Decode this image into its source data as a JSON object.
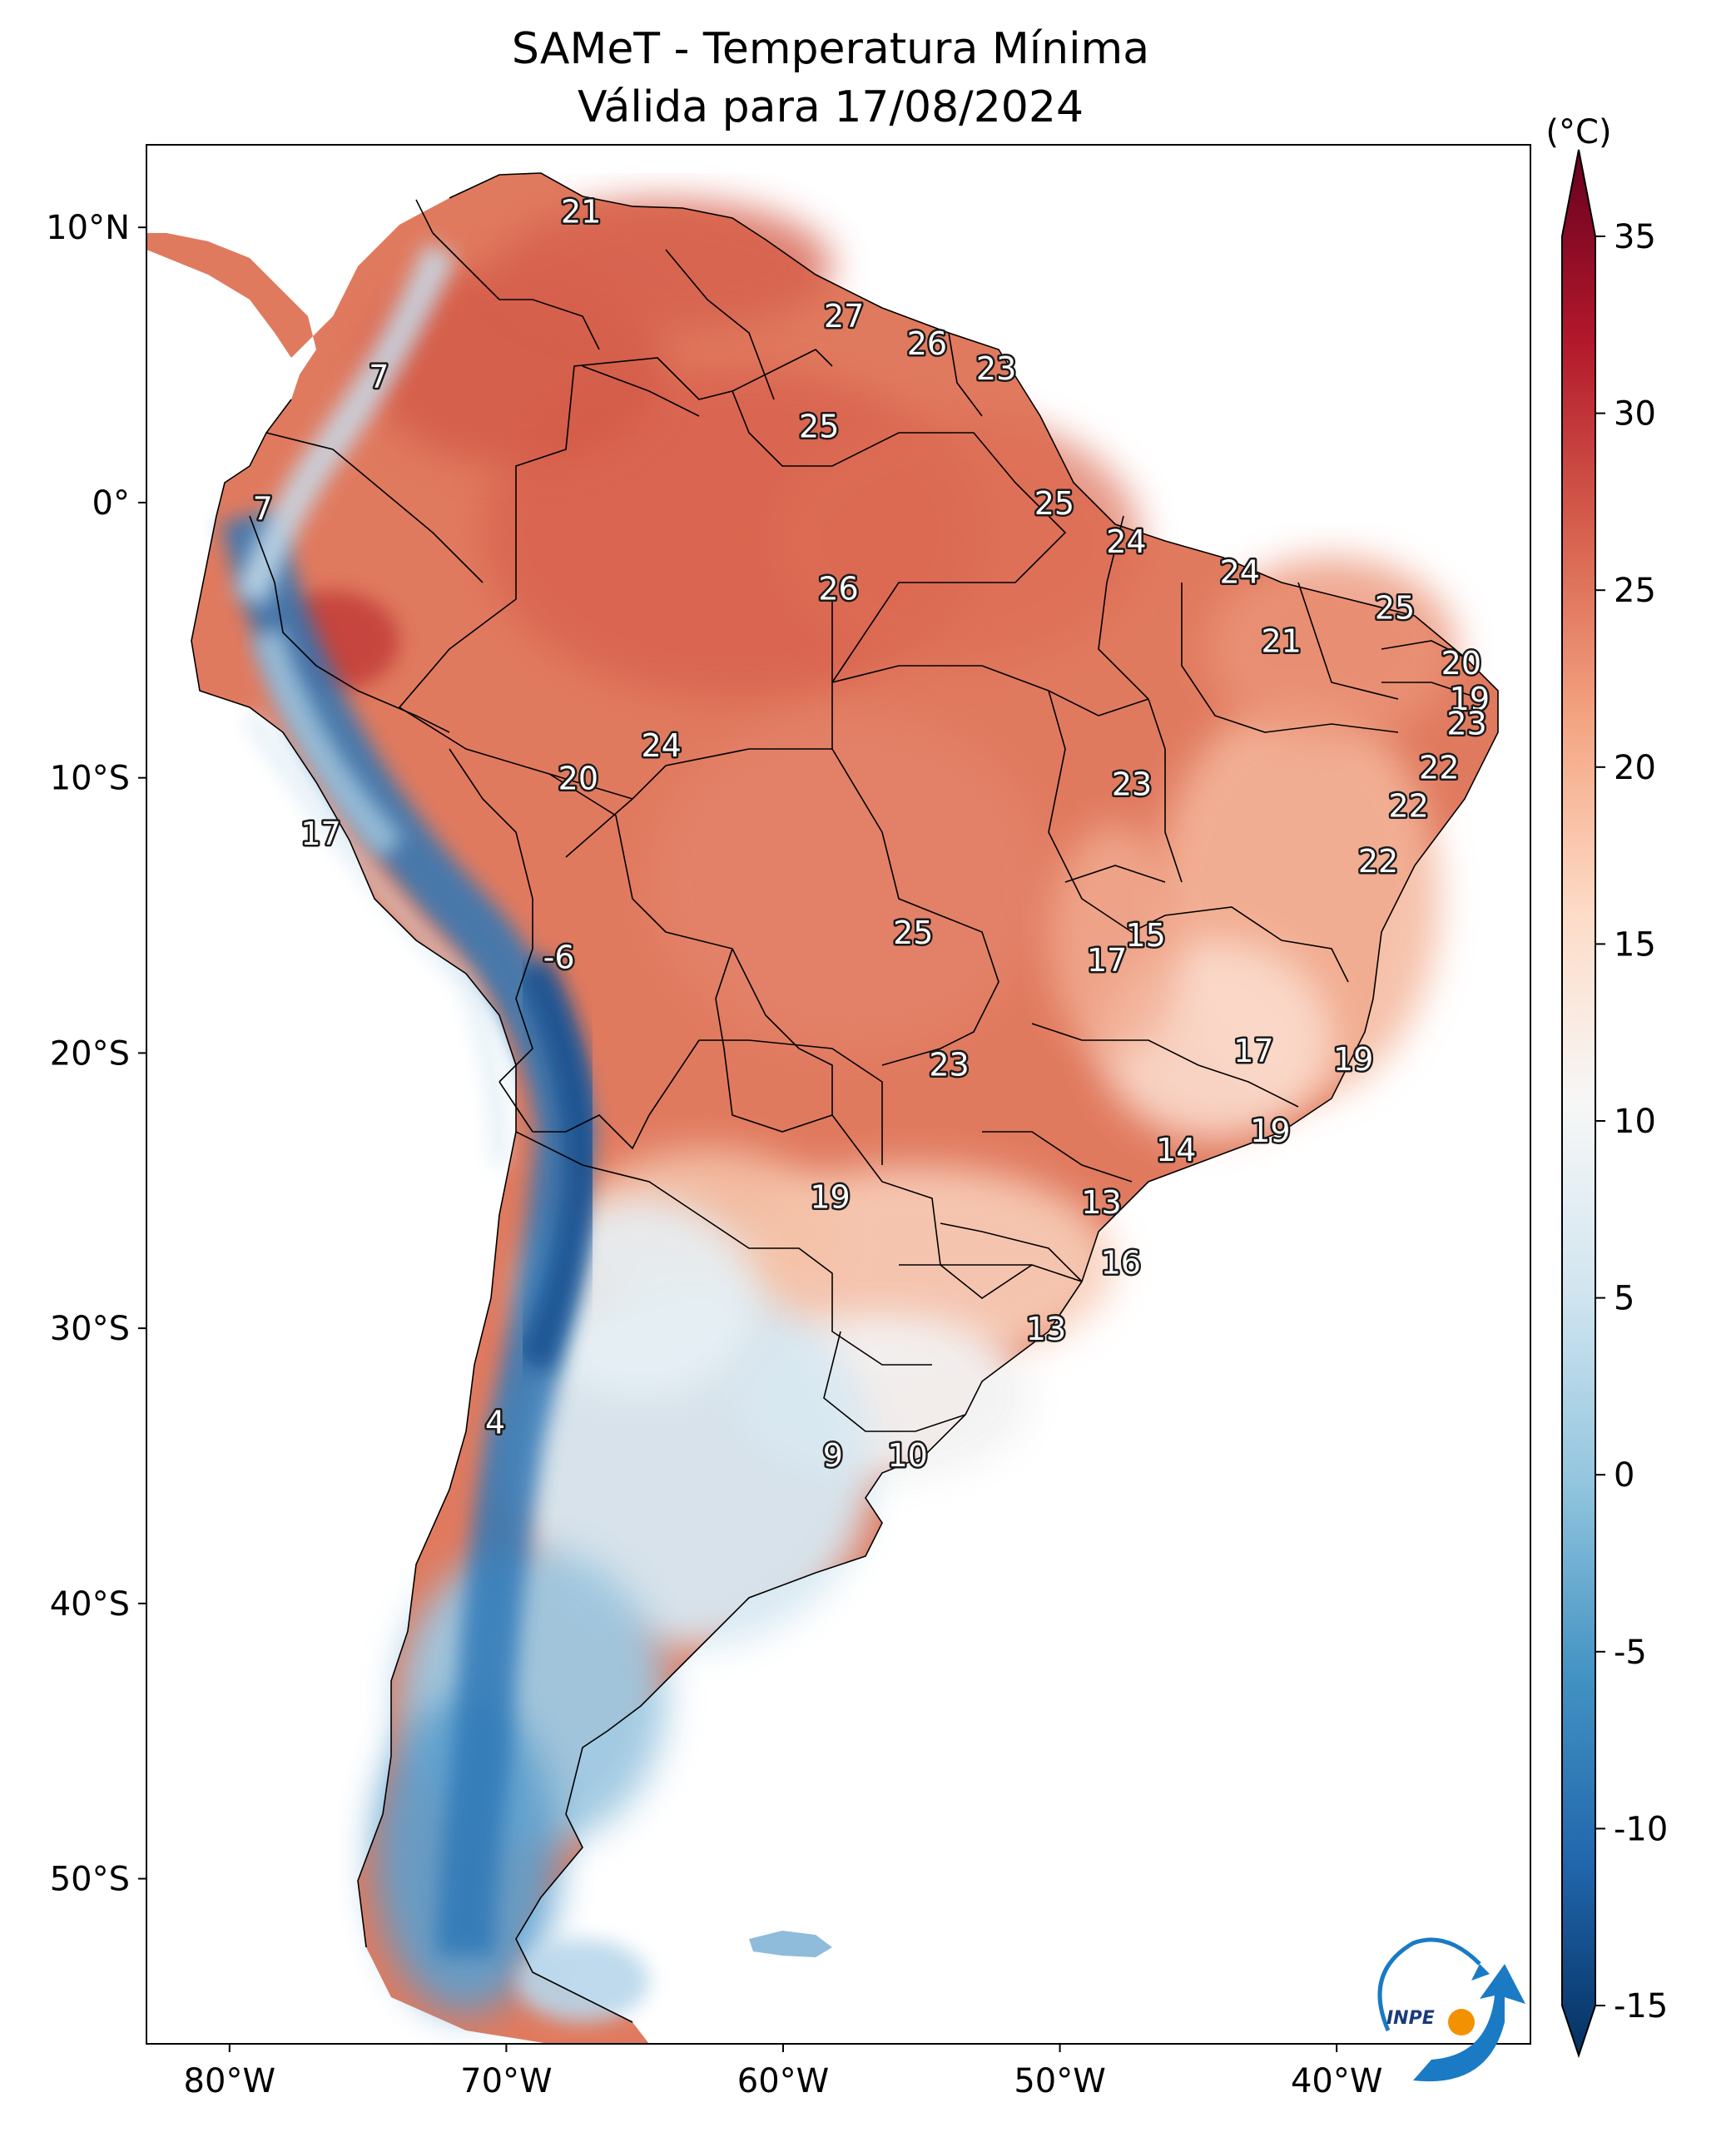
{
  "title": {
    "line1": "SAMeT - Temperatura Mínima",
    "line2": "Válida para 17/08/2024"
  },
  "map": {
    "lat_labels": [
      "10°N",
      "0°",
      "10°S",
      "20°S",
      "30°S",
      "40°S",
      "50°S"
    ],
    "lon_labels": [
      "80°W",
      "70°W",
      "60°W",
      "50°W",
      "40°W"
    ],
    "extent": {
      "lon_min": -83,
      "lon_max": -33,
      "lat_min": -56,
      "lat_max": 13
    },
    "ocean_color": "#ffffff",
    "border_color": "#000000"
  },
  "stations": [
    {
      "value": "21",
      "lon": -67.3,
      "lat": 10.6
    },
    {
      "value": "7",
      "lon": -74.6,
      "lat": 4.6
    },
    {
      "value": "27",
      "lon": -57.8,
      "lat": 6.8
    },
    {
      "value": "26",
      "lon": -54.8,
      "lat": 5.8
    },
    {
      "value": "23",
      "lon": -52.3,
      "lat": 4.9
    },
    {
      "value": "25",
      "lon": -58.7,
      "lat": 2.8
    },
    {
      "value": "7",
      "lon": -78.8,
      "lat": -0.2
    },
    {
      "value": "25",
      "lon": -50.2,
      "lat": 0.0
    },
    {
      "value": "24",
      "lon": -47.6,
      "lat": -1.4
    },
    {
      "value": "26",
      "lon": -58.0,
      "lat": -3.1
    },
    {
      "value": "24",
      "lon": -43.5,
      "lat": -2.5
    },
    {
      "value": "25",
      "lon": -37.9,
      "lat": -3.8
    },
    {
      "value": "21",
      "lon": -42.0,
      "lat": -5.0
    },
    {
      "value": "20",
      "lon": -35.5,
      "lat": -5.8
    },
    {
      "value": "19",
      "lon": -35.2,
      "lat": -7.1
    },
    {
      "value": "23",
      "lon": -35.3,
      "lat": -8.0
    },
    {
      "value": "24",
      "lon": -64.4,
      "lat": -8.8
    },
    {
      "value": "22",
      "lon": -36.3,
      "lat": -9.6
    },
    {
      "value": "20",
      "lon": -67.4,
      "lat": -10.0
    },
    {
      "value": "23",
      "lon": -47.4,
      "lat": -10.2
    },
    {
      "value": "22",
      "lon": -37.4,
      "lat": -11.0
    },
    {
      "value": "17",
      "lon": -76.7,
      "lat": -12.0
    },
    {
      "value": "22",
      "lon": -38.5,
      "lat": -13.0
    },
    {
      "value": "25",
      "lon": -55.3,
      "lat": -15.6
    },
    {
      "value": "15",
      "lon": -46.9,
      "lat": -15.7
    },
    {
      "value": "-6",
      "lon": -68.1,
      "lat": -16.5
    },
    {
      "value": "17",
      "lon": -48.3,
      "lat": -16.6
    },
    {
      "value": "17",
      "lon": -43.0,
      "lat": -19.9
    },
    {
      "value": "23",
      "lon": -54.0,
      "lat": -20.4
    },
    {
      "value": "19",
      "lon": -39.4,
      "lat": -20.2
    },
    {
      "value": "19",
      "lon": -42.4,
      "lat": -22.8
    },
    {
      "value": "14",
      "lon": -45.8,
      "lat": -23.5
    },
    {
      "value": "19",
      "lon": -58.3,
      "lat": -25.2
    },
    {
      "value": "13",
      "lon": -48.5,
      "lat": -25.4
    },
    {
      "value": "16",
      "lon": -47.8,
      "lat": -27.6
    },
    {
      "value": "13",
      "lon": -50.5,
      "lat": -30.0
    },
    {
      "value": "4",
      "lon": -70.4,
      "lat": -33.4
    },
    {
      "value": "9",
      "lon": -58.2,
      "lat": -34.6
    },
    {
      "value": "10",
      "lon": -55.5,
      "lat": -34.6
    }
  ],
  "colorbar": {
    "unit_label": "(°C)",
    "tick_labels": [
      "35",
      "30",
      "25",
      "20",
      "15",
      "10",
      "5",
      "0",
      "-5",
      "-10",
      "-15"
    ],
    "min": -15,
    "max": 35,
    "colormap": "RdBu_r",
    "color_stops": [
      "#053061",
      "#2166ac",
      "#4393c3",
      "#92c5de",
      "#d1e5f0",
      "#f7f7f7",
      "#fddbc7",
      "#f4a582",
      "#d6604d",
      "#b2182b",
      "#67001f"
    ]
  },
  "logo": {
    "text": "INPE",
    "primary_color": "#1a7bc4",
    "accent_color": "#f39200"
  }
}
